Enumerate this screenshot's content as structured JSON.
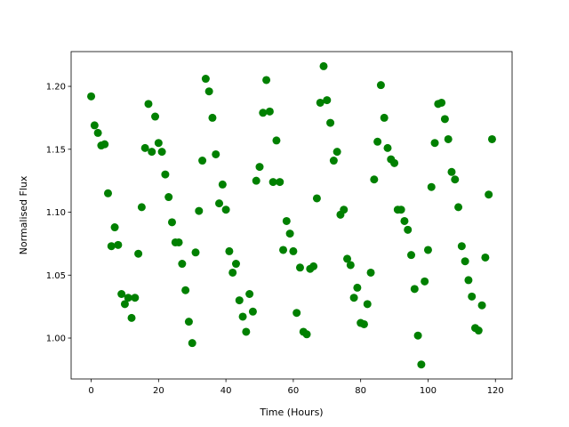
{
  "chart_data": {
    "type": "scatter",
    "x_label": "Time (Hours)",
    "y_label": "Normalised Flux",
    "color": "#008000",
    "x": [
      0,
      1,
      2,
      3,
      4,
      5,
      6,
      7,
      8,
      9,
      10,
      11,
      12,
      13,
      14,
      15,
      16,
      17,
      18,
      19,
      20,
      21,
      22,
      23,
      24,
      25,
      26,
      27,
      28,
      29,
      30,
      31,
      32,
      33,
      34,
      35,
      36,
      37,
      38,
      39,
      40,
      41,
      42,
      43,
      44,
      45,
      46,
      47,
      48,
      49,
      50,
      51,
      52,
      53,
      54,
      55,
      56,
      57,
      58,
      59,
      60,
      61,
      62,
      63,
      64,
      65,
      66,
      67,
      68,
      69,
      70,
      71,
      72,
      73,
      74,
      75,
      76,
      77,
      78,
      79,
      80,
      81,
      82,
      83,
      84,
      85,
      86,
      87,
      88,
      89,
      90,
      91,
      92,
      93,
      94,
      95,
      96,
      97,
      98,
      99,
      100,
      101,
      102,
      103,
      104,
      105,
      106,
      107,
      108,
      109,
      110,
      111,
      112,
      113,
      114,
      115,
      116,
      117,
      118,
      119
    ],
    "values": [
      1.192,
      1.169,
      1.163,
      1.153,
      1.154,
      1.115,
      1.073,
      1.088,
      1.074,
      1.035,
      1.027,
      1.032,
      1.016,
      1.032,
      1.067,
      1.104,
      1.151,
      1.186,
      1.148,
      1.176,
      1.155,
      1.148,
      1.13,
      1.112,
      1.092,
      1.076,
      1.076,
      1.059,
      1.038,
      1.013,
      0.996,
      1.068,
      1.101,
      1.141,
      1.206,
      1.196,
      1.175,
      1.146,
      1.107,
      1.122,
      1.102,
      1.069,
      1.052,
      1.059,
      1.03,
      1.017,
      1.005,
      1.035,
      1.021,
      1.125,
      1.136,
      1.179,
      1.205,
      1.18,
      1.124,
      1.157,
      1.124,
      1.07,
      1.093,
      1.083,
      1.069,
      1.02,
      1.056,
      1.005,
      1.003,
      1.055,
      1.057,
      1.111,
      1.187,
      1.216,
      1.189,
      1.171,
      1.141,
      1.148,
      1.098,
      1.102,
      1.063,
      1.058,
      1.032,
      1.04,
      1.012,
      1.011,
      1.027,
      1.052,
      1.126,
      1.156,
      1.201,
      1.175,
      1.151,
      1.142,
      1.139,
      1.102,
      1.102,
      1.093,
      1.086,
      1.066,
      1.039,
      1.002,
      0.979,
      1.045,
      1.07,
      1.12,
      1.155,
      1.186,
      1.187,
      1.174,
      1.158,
      1.132,
      1.126,
      1.104,
      1.073,
      1.061,
      1.046,
      1.033,
      1.008,
      1.006,
      1.026,
      1.064,
      1.114,
      1.158
    ],
    "xlim": [
      -5.95,
      124.95
    ],
    "xticks": [
      0,
      20,
      40,
      60,
      80,
      100,
      120
    ],
    "ylim": [
      0.9675,
      1.2276
    ],
    "yticks": [
      {
        "value": 1,
        "label": "1.00"
      },
      {
        "value": 1.05,
        "label": "1.05"
      },
      {
        "value": 1.1,
        "label": "1.10"
      },
      {
        "value": 1.15,
        "label": "1.15"
      },
      {
        "value": 1.2,
        "label": "1.20"
      }
    ]
  }
}
